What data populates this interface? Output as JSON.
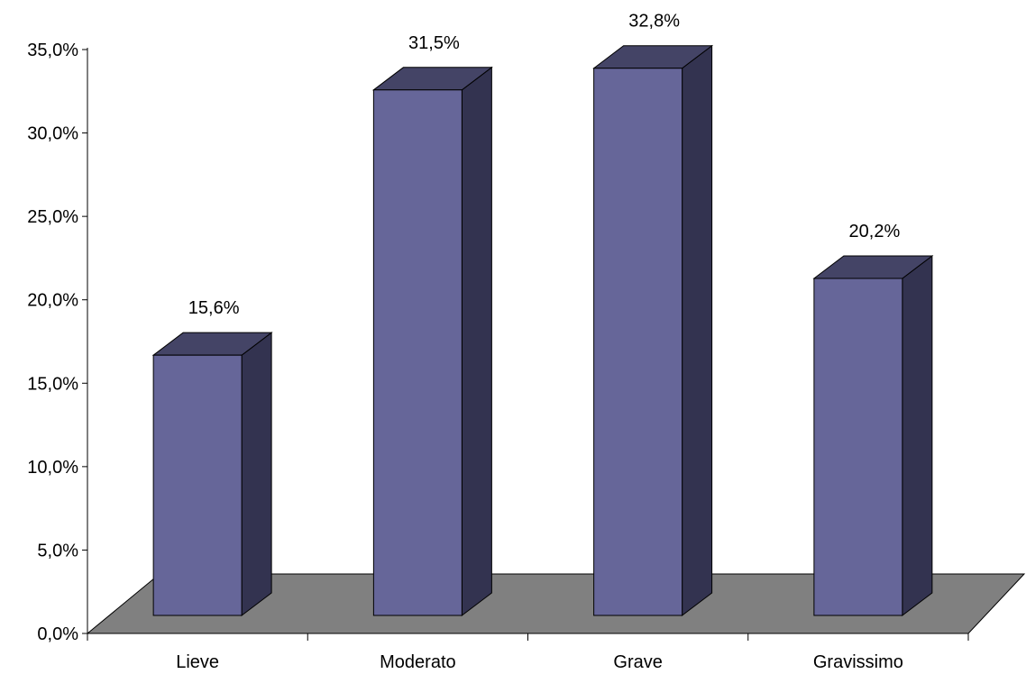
{
  "chart_data": {
    "type": "bar",
    "style": "3d-column",
    "categories": [
      "Lieve",
      "Moderato",
      "Grave",
      "Gravissimo"
    ],
    "values": [
      15.6,
      31.5,
      32.8,
      20.2
    ],
    "data_labels": [
      "15,6%",
      "31,5%",
      "32,8%",
      "20,2%"
    ],
    "ylim": [
      0,
      35
    ],
    "y_ticks": [
      0,
      5,
      10,
      15,
      20,
      25,
      30,
      35
    ],
    "y_tick_labels": [
      "0,0%",
      "5,0%",
      "10,0%",
      "15,0%",
      "20,0%",
      "25,0%",
      "30,0%",
      "35,0%"
    ],
    "grid": false,
    "legend": "none",
    "colors": {
      "bar_front": "#666699",
      "bar_top": "#444466",
      "bar_side": "#333350",
      "floor": "#808080",
      "outline": "#000000"
    }
  }
}
